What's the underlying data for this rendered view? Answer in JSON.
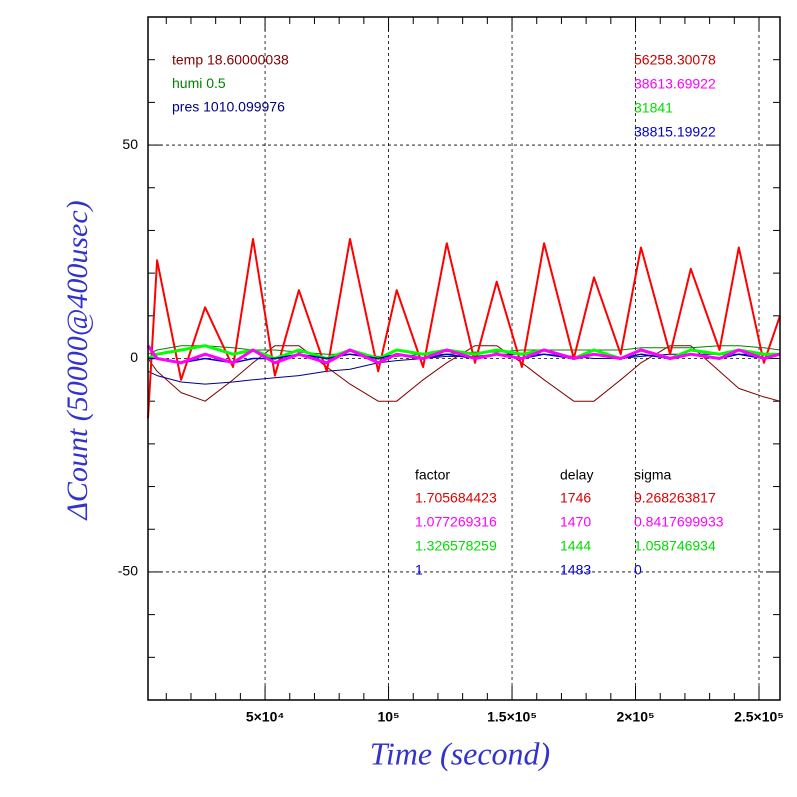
{
  "chart_data": {
    "type": "line",
    "xlabel": "Time (second)",
    "ylabel": "ΔCount (50000@400usec)",
    "xlim": [
      2600,
      258500
    ],
    "ylim": [
      -80,
      80
    ],
    "xticks": [
      {
        "value": 50000,
        "label": "5×10⁴"
      },
      {
        "value": 100000,
        "label": "10⁵"
      },
      {
        "value": 150000,
        "label": "1.5×10⁵"
      },
      {
        "value": 200000,
        "label": "2×10⁵"
      },
      {
        "value": 250000,
        "label": "2.5×10⁵"
      }
    ],
    "yticks": [
      -50,
      0,
      50
    ],
    "xticks_minor": [
      10000,
      20000,
      30000,
      40000,
      60000,
      70000,
      80000,
      90000,
      110000,
      120000,
      130000,
      140000,
      160000,
      170000,
      180000,
      190000,
      210000,
      220000,
      230000,
      240000
    ],
    "yticks_minor": [
      -70,
      -60,
      -40,
      -30,
      -20,
      -10,
      10,
      20,
      30,
      40,
      60,
      70
    ],
    "grid": true,
    "x": [
      2600,
      6300,
      16000,
      25700,
      37000,
      45100,
      54000,
      63700,
      75000,
      84400,
      95800,
      103300,
      114000,
      123600,
      135000,
      143800,
      154000,
      163000,
      175000,
      183200,
      194000,
      202200,
      214000,
      222400,
      234000,
      241800,
      252000,
      258500
    ],
    "series": [
      {
        "color": "#800000",
        "width": 1,
        "values": [
          0,
          -3,
          -8,
          -10,
          -5,
          -1,
          3,
          3,
          -2,
          -6,
          -10,
          -10,
          -5,
          -1,
          3,
          3,
          -1,
          -5,
          -10,
          -10,
          -5,
          -1,
          3,
          3,
          -3,
          -7,
          -9,
          -10
        ]
      },
      {
        "color": "#008000",
        "width": 1,
        "values": [
          1,
          2,
          3,
          3,
          2.5,
          2,
          2,
          1.5,
          1,
          1,
          0.5,
          0.5,
          1,
          1,
          1.5,
          1.5,
          2,
          2,
          2,
          2,
          2,
          2.5,
          2.5,
          2.5,
          3,
          3,
          2.5,
          2
        ]
      },
      {
        "color": "#000080",
        "width": 1,
        "values": [
          -3,
          -4,
          -5.5,
          -6,
          -5.5,
          -5,
          -4.5,
          -4,
          -3,
          -2.5,
          -1,
          -0.5,
          0,
          0.5,
          0.5,
          1,
          1,
          1,
          0.5,
          0,
          0,
          0.5,
          1,
          1,
          1,
          1,
          1,
          1
        ]
      },
      {
        "color": "#ff0000",
        "width": 2,
        "values": [
          -14,
          23,
          -5,
          12,
          -2,
          28,
          -4,
          16,
          -3,
          28,
          -3,
          16,
          -2,
          27,
          -1,
          18,
          -2,
          27,
          0,
          19,
          1,
          26,
          1,
          21,
          2,
          26,
          -1,
          10
        ]
      },
      {
        "color": "#00ff00",
        "width": 3,
        "values": [
          0,
          1,
          2,
          3,
          1,
          2,
          0,
          2,
          0,
          2,
          0,
          2,
          1,
          2,
          1,
          2,
          1,
          2,
          0,
          2,
          0,
          2,
          0,
          2,
          1,
          2,
          1,
          1
        ]
      },
      {
        "color": "#0000cc",
        "width": 1.5,
        "values": [
          0,
          0,
          -1,
          0,
          -1,
          0,
          0,
          1,
          0,
          1,
          0,
          1,
          0,
          1,
          0,
          1,
          0,
          1,
          0,
          1,
          0,
          1,
          0,
          1,
          0,
          1,
          0,
          1
        ]
      },
      {
        "color": "#ff00ff",
        "width": 3,
        "values": [
          3,
          0,
          -1,
          1,
          -1,
          2,
          -1,
          1,
          -1,
          2,
          -1,
          1,
          0,
          2,
          0,
          1,
          0,
          2,
          0,
          1,
          0,
          2,
          0,
          1,
          0,
          2,
          0,
          1
        ]
      }
    ],
    "annotations_left": [
      {
        "text": "temp 18.60000038",
        "color": "#800000"
      },
      {
        "text": "humi 0.5",
        "color": "#008000"
      },
      {
        "text": "pres 1010.099976",
        "color": "#000080"
      }
    ],
    "annotations_right": [
      {
        "text": "56258.30078",
        "color": "#cc0000"
      },
      {
        "text": "38613.69922",
        "color": "#ff00ff"
      },
      {
        "text": "31841",
        "color": "#00dd00"
      },
      {
        "text": "38815.19922",
        "color": "#0000cc"
      }
    ],
    "table": {
      "columns": [
        "factor",
        "delay",
        "sigma"
      ],
      "rows": [
        [
          "1.705684423",
          "1746",
          "9.268263817"
        ],
        [
          "1.077269316",
          "1470",
          "0.8417699933"
        ],
        [
          "1.326578259",
          "1444",
          "1.058746934"
        ],
        [
          "1",
          "1483",
          "0"
        ]
      ],
      "row_colors": [
        "#dd0000",
        "#ff00ff",
        "#00dd00",
        "#0000cc"
      ]
    }
  }
}
